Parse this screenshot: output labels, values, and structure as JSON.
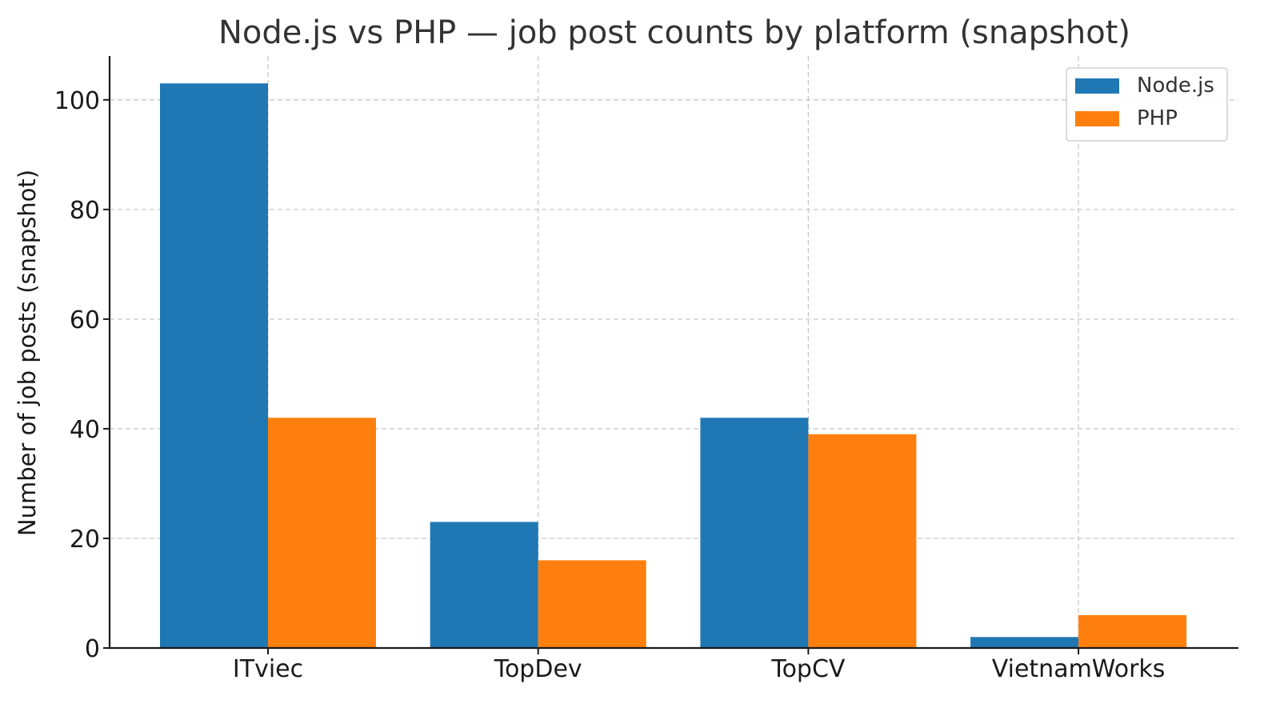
{
  "chart_data": {
    "type": "bar",
    "title": "Node.js vs PHP — job post counts by platform (snapshot)",
    "xlabel": "",
    "ylabel": "Number of job posts (snapshot)",
    "categories": [
      "ITviec",
      "TopDev",
      "TopCV",
      "VietnamWorks"
    ],
    "series": [
      {
        "name": "Node.js",
        "color": "#1f77b4",
        "values": [
          103,
          23,
          42,
          2
        ]
      },
      {
        "name": "PHP",
        "color": "#ff7f0e",
        "values": [
          42,
          16,
          39,
          6
        ]
      }
    ],
    "ylim": [
      0,
      108
    ],
    "yticks": [
      0,
      20,
      40,
      60,
      80,
      100
    ],
    "grid": true,
    "legend_position": "top-right"
  }
}
